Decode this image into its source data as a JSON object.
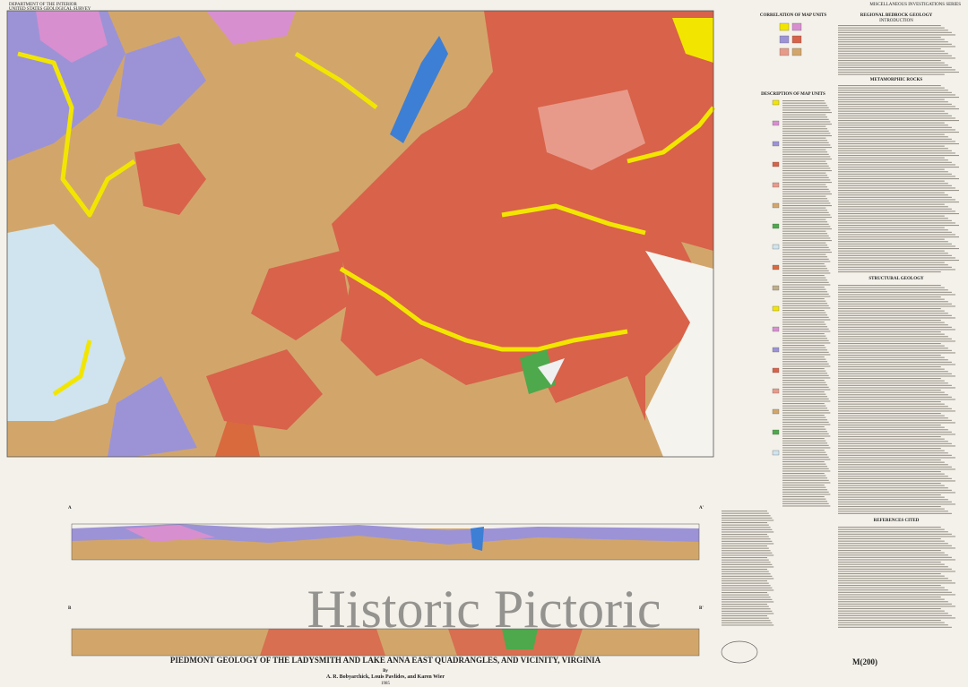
{
  "header": {
    "agency": "DEPARTMENT OF THE INTERIOR",
    "survey": "UNITED STATES GEOLOGICAL SURVEY",
    "series": "MISCELLANEOUS INVESTIGATIONS SERIES"
  },
  "sections": {
    "correlation": "CORRELATION OF MAP UNITS",
    "description": "DESCRIPTION OF MAP UNITS",
    "regional": "REGIONAL BEDROCK GEOLOGY",
    "introduction": "INTRODUCTION",
    "metamorphic": "METAMORPHIC ROCKS",
    "structural": "STRUCTURAL GEOLOGY",
    "references": "REFERENCES CITED"
  },
  "cross_sections": {
    "a_start": "A",
    "a_end": "A'",
    "b_start": "B",
    "b_end": "B'"
  },
  "footer": {
    "title": "PIEDMONT GEOLOGY OF THE LADYSMITH AND LAKE ANNA EAST QUADRANGLES, AND VICINITY, VIRGINIA",
    "by": "By",
    "authors": "A. R. Bobyarchick, Louis Pavlides, and Karen Wier",
    "year": "1985"
  },
  "stamp": "M(200)",
  "watermark": "Historic Pictoric"
}
